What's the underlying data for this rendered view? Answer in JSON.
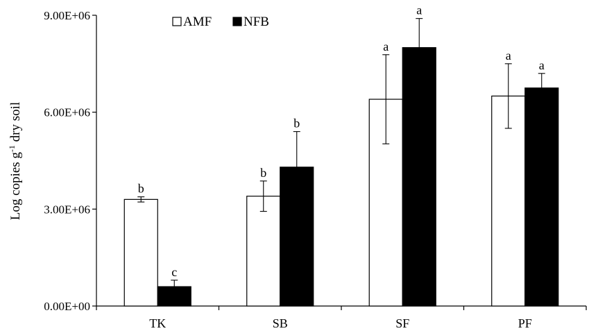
{
  "chart_data": {
    "type": "bar",
    "ylabel": {
      "prefix": "Log copies g",
      "superscript": "-1",
      "suffix": " dry soil"
    },
    "xlabel": "",
    "ylim": [
      0,
      9000000
    ],
    "yticks": [
      0,
      3000000,
      6000000,
      9000000
    ],
    "ytick_labels": [
      "0.00E+00",
      "3.00E+06",
      "6.00E+06",
      "9.00E+06"
    ],
    "grid": false,
    "legend_position": "top-left",
    "categories": [
      "TK",
      "SB",
      "SF",
      "PF"
    ],
    "series": [
      {
        "name": "AMF",
        "fill": "#ffffff",
        "values": [
          3300000,
          3400000,
          6400000,
          6500000
        ],
        "errors": [
          80000,
          470000,
          1380000,
          1000000
        ],
        "letters": [
          "b",
          "b",
          "a",
          "a"
        ]
      },
      {
        "name": "NFB",
        "fill": "#000000",
        "values": [
          600000,
          4300000,
          8000000,
          6750000
        ],
        "errors": [
          200000,
          1100000,
          900000,
          450000
        ],
        "letters": [
          "c",
          "b",
          "a",
          "a"
        ]
      }
    ]
  }
}
